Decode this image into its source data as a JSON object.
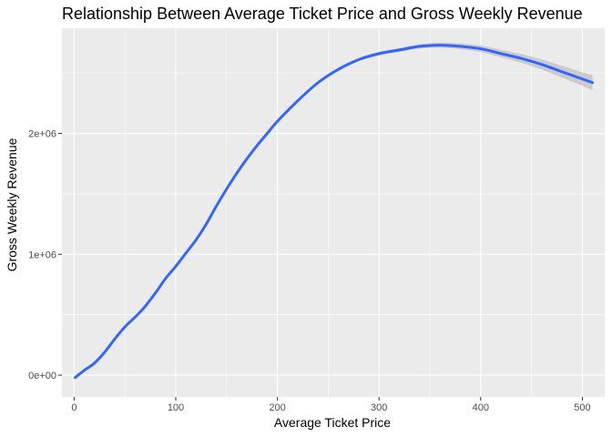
{
  "chart_data": {
    "type": "line",
    "title": "Relationship Between Average Ticket Price and Gross Weekly Revenue",
    "xlabel": "Average Ticket Price",
    "ylabel": "Gross Weekly Revenue",
    "xlim": [
      -12,
      522
    ],
    "ylim": [
      -180000,
      2870000
    ],
    "x_ticks": [
      0,
      100,
      200,
      300,
      400,
      500
    ],
    "x_tick_labels": [
      "0",
      "100",
      "200",
      "300",
      "400",
      "500"
    ],
    "y_ticks": [
      0,
      1000000,
      2000000
    ],
    "y_tick_labels": [
      "0e+00",
      "1e+06",
      "2e+06"
    ],
    "grid": true,
    "legend": "none",
    "series": [
      {
        "smooth": true,
        "color": "#3366ff",
        "band_color": "#c8c8c8",
        "x": [
          1,
          10,
          20,
          30,
          40,
          50,
          60,
          70,
          80,
          90,
          100,
          110,
          120,
          130,
          140,
          150,
          160,
          170,
          180,
          190,
          200,
          220,
          240,
          260,
          280,
          300,
          320,
          340,
          360,
          380,
          400,
          420,
          440,
          460,
          480,
          500,
          510
        ],
        "y": [
          -20000,
          40000,
          100000,
          190000,
          300000,
          400000,
          480000,
          570000,
          680000,
          800000,
          900000,
          1010000,
          1120000,
          1250000,
          1400000,
          1540000,
          1670000,
          1790000,
          1900000,
          2000000,
          2100000,
          2270000,
          2420000,
          2530000,
          2610000,
          2660000,
          2690000,
          2720000,
          2730000,
          2720000,
          2700000,
          2660000,
          2620000,
          2570000,
          2510000,
          2450000,
          2420000
        ],
        "band_half_width": [
          18000,
          13000,
          12000,
          12000,
          12000,
          12000,
          12000,
          12000,
          12000,
          12000,
          12000,
          12000,
          12000,
          12000,
          12000,
          12000,
          12000,
          12000,
          12000,
          12000,
          12000,
          12000,
          12000,
          12000,
          13000,
          14000,
          16000,
          18000,
          21000,
          24000,
          27000,
          31000,
          36000,
          42000,
          49000,
          56000,
          62000
        ]
      }
    ]
  }
}
